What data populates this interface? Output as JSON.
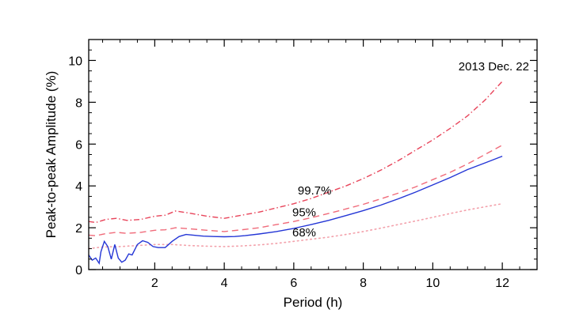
{
  "chart_data": {
    "type": "line",
    "xlabel": "Period (h)",
    "ylabel": "Peak-to-peak Amplitude (%)",
    "xlim": [
      0.1,
      13
    ],
    "ylim": [
      0,
      11
    ],
    "xticks": [
      2,
      4,
      6,
      8,
      10,
      12
    ],
    "yticks": [
      0,
      2,
      4,
      6,
      8,
      10
    ],
    "annotation": "2013 Dec. 22",
    "series": [
      {
        "label": "99.7%",
        "color": "#e8445a",
        "style": "dash-dot",
        "x": [
          0.1,
          0.3,
          0.6,
          0.9,
          1.2,
          1.6,
          2.0,
          2.3,
          2.6,
          3.0,
          3.5,
          4.0,
          4.5,
          5.0,
          5.5,
          6.0,
          6.5,
          7.0,
          7.5,
          8.0,
          8.5,
          9.0,
          9.5,
          10.0,
          10.5,
          11.0,
          11.5,
          12.0
        ],
        "y": [
          2.3,
          2.25,
          2.4,
          2.45,
          2.35,
          2.4,
          2.55,
          2.6,
          2.8,
          2.7,
          2.55,
          2.45,
          2.6,
          2.75,
          2.95,
          3.15,
          3.4,
          3.7,
          4.0,
          4.35,
          4.75,
          5.2,
          5.7,
          6.2,
          6.75,
          7.35,
          8.1,
          9.0
        ]
      },
      {
        "label": "95%",
        "color": "#f06b7a",
        "style": "dashed",
        "x": [
          0.1,
          0.3,
          0.6,
          0.9,
          1.2,
          1.6,
          2.0,
          2.3,
          2.6,
          3.0,
          3.5,
          4.0,
          4.5,
          5.0,
          5.5,
          6.0,
          6.5,
          7.0,
          7.5,
          8.0,
          8.5,
          9.0,
          9.5,
          10.0,
          10.5,
          11.0,
          11.5,
          12.0
        ],
        "y": [
          1.65,
          1.62,
          1.72,
          1.78,
          1.73,
          1.78,
          1.88,
          1.9,
          2.0,
          1.95,
          1.88,
          1.82,
          1.9,
          2.0,
          2.15,
          2.3,
          2.48,
          2.68,
          2.9,
          3.12,
          3.38,
          3.65,
          3.95,
          4.3,
          4.65,
          5.05,
          5.5,
          5.95
        ]
      },
      {
        "label": "68%",
        "color": "#f3a0aa",
        "style": "dotted",
        "x": [
          0.1,
          0.5,
          1.0,
          1.5,
          2.0,
          2.5,
          3.0,
          3.5,
          4.0,
          4.5,
          5.0,
          5.5,
          6.0,
          6.5,
          7.0,
          7.5,
          8.0,
          8.5,
          9.0,
          9.5,
          10.0,
          10.5,
          11.0,
          11.5,
          12.0
        ],
        "y": [
          1.0,
          1.08,
          1.1,
          1.15,
          1.2,
          1.2,
          1.15,
          1.12,
          1.1,
          1.13,
          1.18,
          1.25,
          1.35,
          1.45,
          1.55,
          1.68,
          1.82,
          1.98,
          2.15,
          2.32,
          2.5,
          2.68,
          2.85,
          3.0,
          3.15
        ]
      },
      {
        "name": "amplitude",
        "color": "#2436d6",
        "style": "solid",
        "x": [
          0.1,
          0.2,
          0.3,
          0.4,
          0.45,
          0.55,
          0.65,
          0.75,
          0.85,
          0.95,
          1.05,
          1.15,
          1.25,
          1.35,
          1.5,
          1.65,
          1.8,
          1.95,
          2.1,
          2.3,
          2.5,
          2.7,
          2.9,
          3.1,
          3.4,
          3.7,
          4.0,
          4.3,
          4.6,
          5.0,
          5.5,
          6.0,
          6.5,
          7.0,
          7.5,
          8.0,
          8.5,
          9.0,
          9.5,
          10.0,
          10.5,
          11.0,
          11.5,
          12.0
        ],
        "y": [
          0.7,
          0.45,
          0.55,
          0.3,
          0.85,
          1.35,
          1.1,
          0.5,
          1.2,
          0.55,
          0.35,
          0.45,
          0.75,
          0.7,
          1.2,
          1.38,
          1.3,
          1.1,
          1.05,
          1.05,
          1.35,
          1.58,
          1.68,
          1.65,
          1.6,
          1.58,
          1.57,
          1.58,
          1.62,
          1.7,
          1.82,
          1.97,
          2.15,
          2.35,
          2.58,
          2.82,
          3.08,
          3.38,
          3.7,
          4.05,
          4.4,
          4.78,
          5.1,
          5.42
        ]
      }
    ]
  }
}
